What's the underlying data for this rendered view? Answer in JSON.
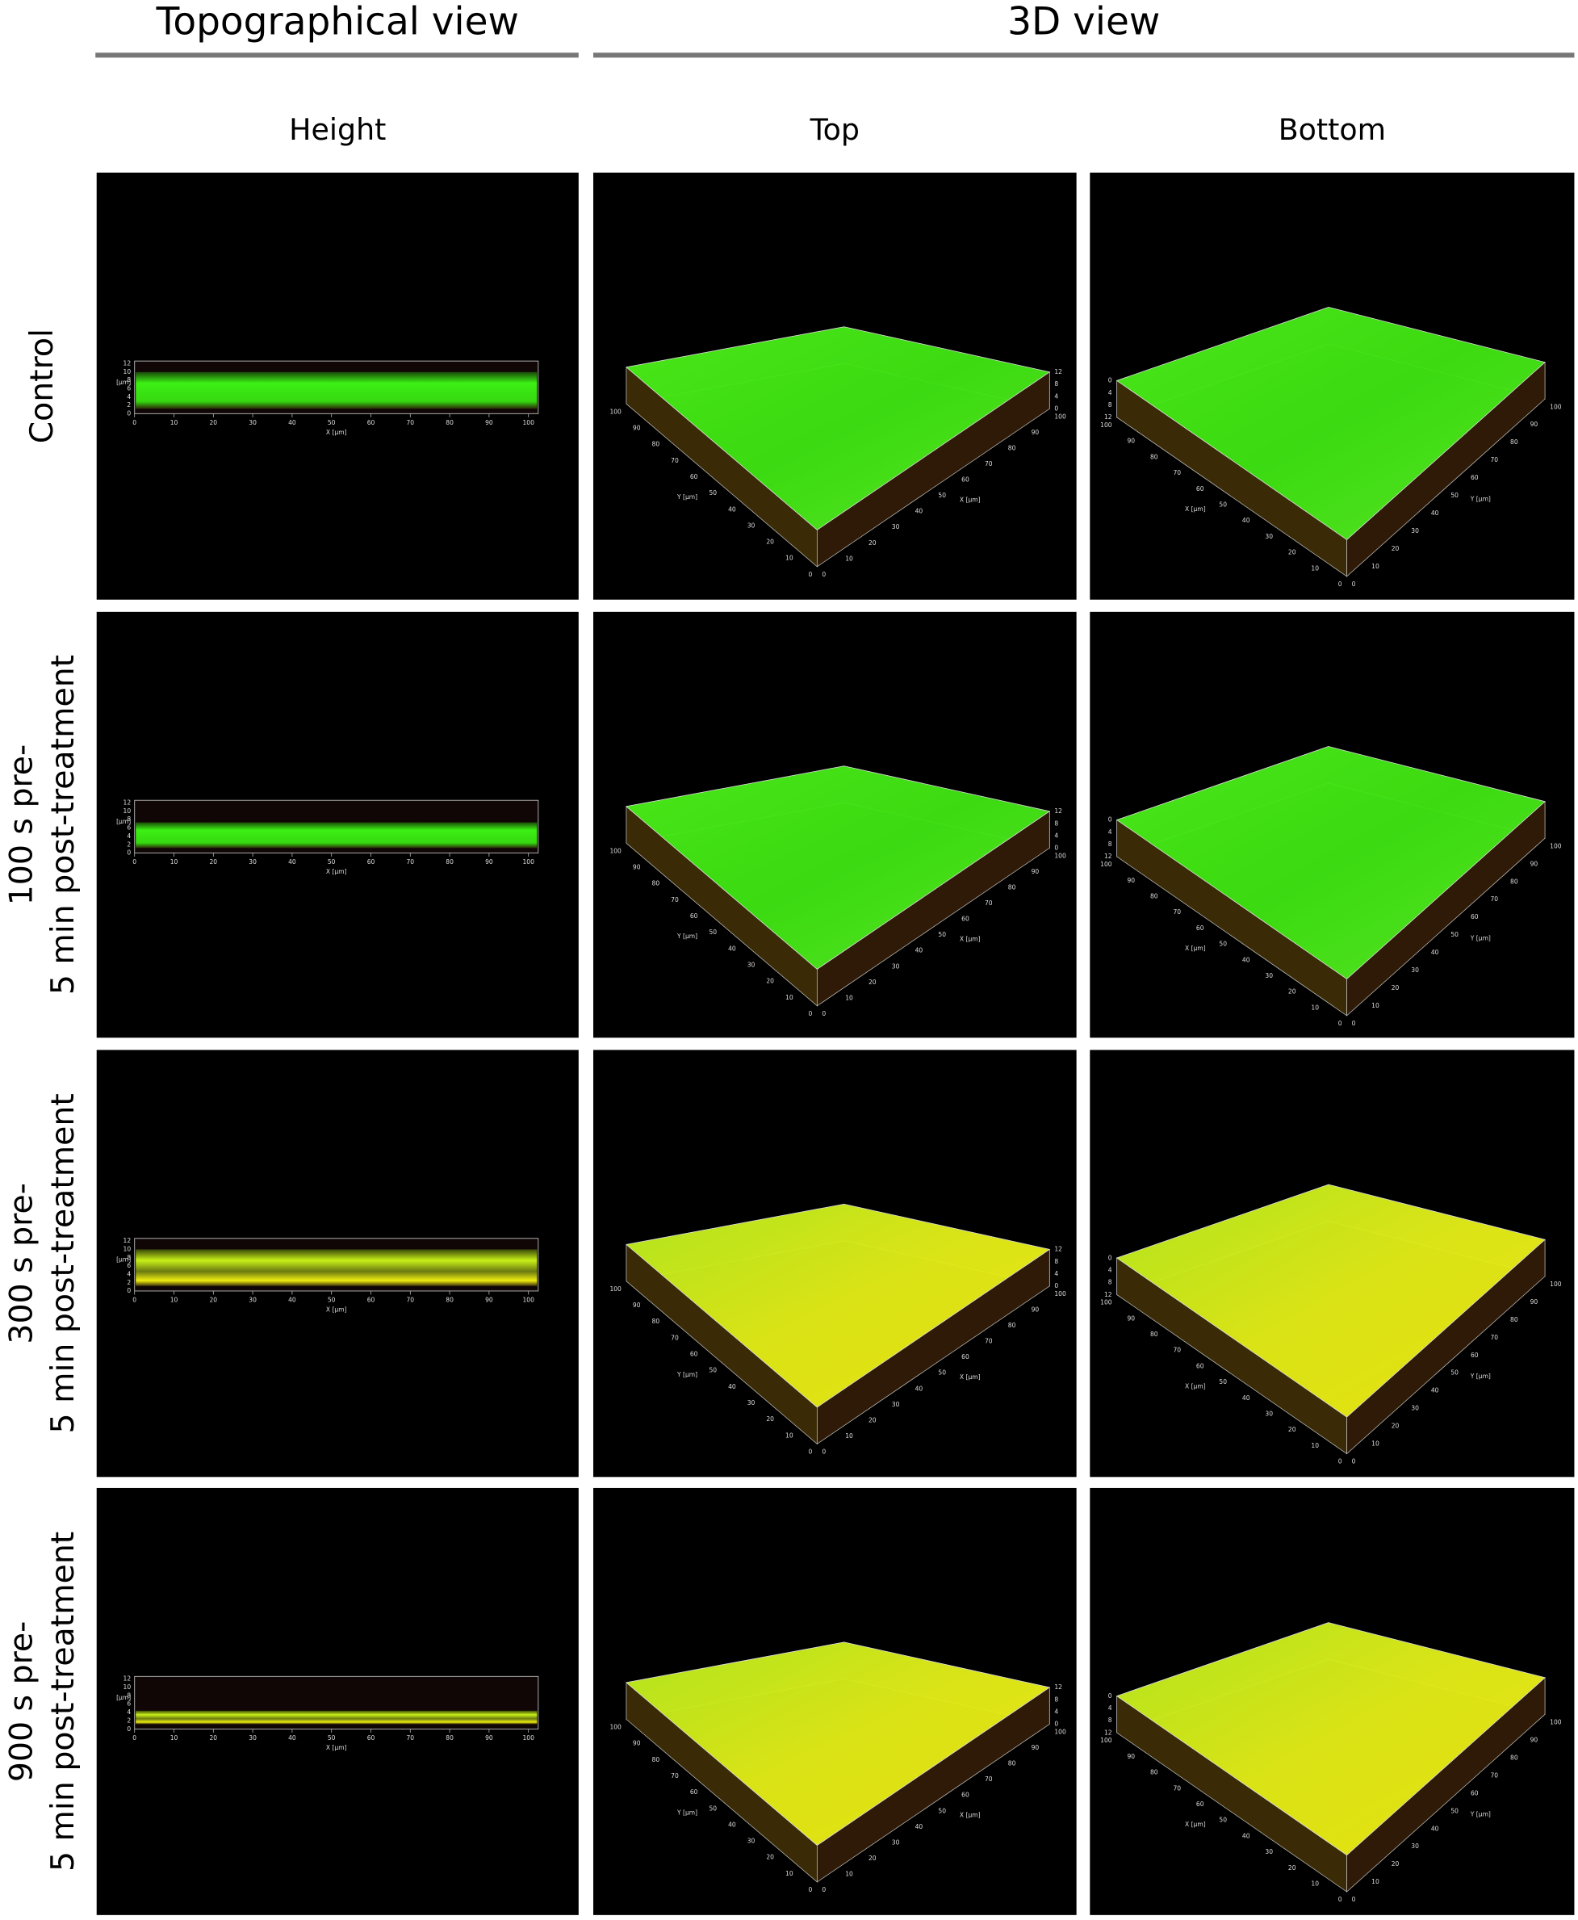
{
  "header": {
    "groups": [
      {
        "title": "Topographical view"
      },
      {
        "title": "3D view"
      }
    ]
  },
  "columns": [
    "Height",
    "Top",
    "Bottom"
  ],
  "rows": [
    {
      "label": [
        "Control"
      ]
    },
    {
      "label": [
        "100 s pre-",
        "5 min post-treatment"
      ]
    },
    {
      "label": [
        "300 s pre-",
        "5 min post-treatment"
      ]
    },
    {
      "label": [
        "900 s pre-",
        "5 min post-treatment"
      ]
    }
  ],
  "height_axis": {
    "z_label": "[µm]",
    "z_ticks": [
      0,
      2,
      4,
      6,
      8,
      10,
      12
    ],
    "x_label": "X [µm]",
    "x_ticks": [
      0,
      10,
      20,
      30,
      40,
      50,
      60,
      70,
      80,
      90,
      100
    ]
  },
  "view3d_axis": {
    "x_label": "X [µm]",
    "y_label": "Y [µm]",
    "xy_ticks": [
      0,
      10,
      20,
      30,
      40,
      50,
      60,
      70,
      80,
      90,
      100
    ],
    "z_ticks": [
      0,
      4,
      8,
      12
    ]
  }
}
